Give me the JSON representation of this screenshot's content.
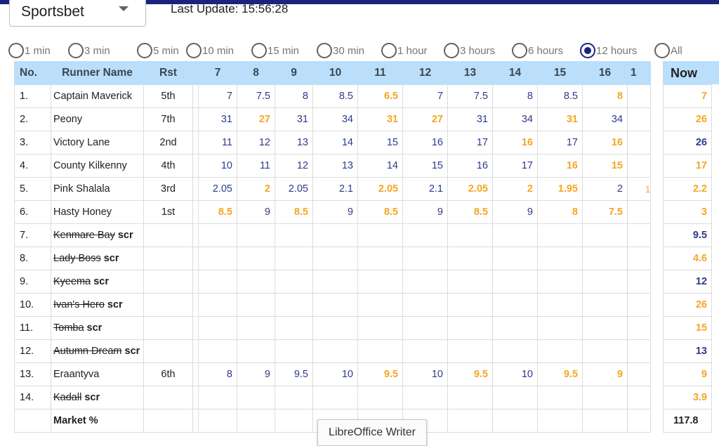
{
  "header": {
    "bookmaker": "Sportsbet",
    "last_update": "Last Update: 15:56:28",
    "accent_color": "#1a237e"
  },
  "time_filters": [
    {
      "label": "1 min",
      "selected": false
    },
    {
      "label": "3 min",
      "selected": false
    },
    {
      "label": "5 min",
      "selected": false
    },
    {
      "label": "10 min",
      "selected": false
    },
    {
      "label": "15 min",
      "selected": false
    },
    {
      "label": "30 min",
      "selected": false
    },
    {
      "label": "1 hour",
      "selected": false
    },
    {
      "label": "3 hours",
      "selected": false
    },
    {
      "label": "6 hours",
      "selected": false
    },
    {
      "label": "12 hours",
      "selected": true
    },
    {
      "label": "All",
      "selected": false
    }
  ],
  "table": {
    "headers": {
      "no": "No.",
      "name": "Runner Name",
      "rst": "Rst",
      "now": "Now"
    },
    "columns": [
      "7",
      "8",
      "9",
      "10",
      "11",
      "12",
      "13",
      "14",
      "15",
      "16",
      "1"
    ],
    "colors": {
      "increase": "#f5a623",
      "decrease": "#2d3a8c",
      "header_bg": "#bbdefb"
    },
    "runners": [
      {
        "no": "1.",
        "name": "Captain Maverick",
        "rst": "5th",
        "scratched": false,
        "odds": [
          "7",
          "7.5",
          "8",
          "8.5",
          "6.5",
          "7",
          "7.5",
          "8",
          "8.5",
          "8"
        ],
        "up": [
          false,
          false,
          false,
          false,
          true,
          false,
          false,
          false,
          false,
          true
        ],
        "now": "7",
        "now_up": true
      },
      {
        "no": "2.",
        "name": "Peony",
        "rst": "7th",
        "scratched": false,
        "odds": [
          "31",
          "27",
          "31",
          "34",
          "31",
          "27",
          "31",
          "34",
          "31",
          "34"
        ],
        "up": [
          false,
          true,
          false,
          false,
          true,
          true,
          false,
          false,
          true,
          false
        ],
        "now": "26",
        "now_up": true
      },
      {
        "no": "3.",
        "name": "Victory Lane",
        "rst": "2nd",
        "scratched": false,
        "odds": [
          "11",
          "12",
          "13",
          "14",
          "15",
          "16",
          "17",
          "16",
          "17",
          "16"
        ],
        "up": [
          false,
          false,
          false,
          false,
          false,
          false,
          false,
          true,
          false,
          true
        ],
        "now": "26",
        "now_up": false
      },
      {
        "no": "4.",
        "name": "County Kilkenny",
        "rst": "4th",
        "scratched": false,
        "odds": [
          "10",
          "11",
          "12",
          "13",
          "14",
          "15",
          "16",
          "17",
          "16",
          "15"
        ],
        "up": [
          false,
          false,
          false,
          false,
          false,
          false,
          false,
          false,
          true,
          true
        ],
        "now": "17",
        "now_up": true
      },
      {
        "no": "5.",
        "name": "Pink Shalala",
        "rst": "3rd",
        "scratched": false,
        "odds": [
          "2.05",
          "2",
          "2.05",
          "2.1",
          "2.05",
          "2.1",
          "2.05",
          "2",
          "1.95",
          "2"
        ],
        "up": [
          false,
          true,
          false,
          false,
          true,
          false,
          true,
          true,
          true,
          false
        ],
        "partial": "1",
        "now": "2.2",
        "now_up": true
      },
      {
        "no": "6.",
        "name": "Hasty Honey",
        "rst": "1st",
        "scratched": false,
        "odds": [
          "8.5",
          "9",
          "8.5",
          "9",
          "8.5",
          "9",
          "8.5",
          "9",
          "8",
          "7.5"
        ],
        "up": [
          true,
          false,
          true,
          false,
          true,
          false,
          true,
          false,
          true,
          true
        ],
        "now": "3",
        "now_up": true
      },
      {
        "no": "7.",
        "name": "Kenmare Bay",
        "scr": "scr",
        "rst": "",
        "scratched": true,
        "now": "9.5",
        "now_up": false
      },
      {
        "no": "8.",
        "name": "Lady Boss",
        "scr": "scr",
        "rst": "",
        "scratched": true,
        "now": "4.6",
        "now_up": true
      },
      {
        "no": "9.",
        "name": "Kyeema",
        "scr": "scr",
        "rst": "",
        "scratched": true,
        "now": "12",
        "now_up": false
      },
      {
        "no": "10.",
        "name": "Ivan's Hero",
        "scr": "scr",
        "rst": "",
        "scratched": true,
        "now": "26",
        "now_up": true
      },
      {
        "no": "11.",
        "name": "Tomba",
        "scr": "scr",
        "rst": "",
        "scratched": true,
        "now": "15",
        "now_up": true
      },
      {
        "no": "12.",
        "name": "Autumn Dream",
        "scr": "scr",
        "rst": "",
        "scratched": true,
        "now": "13",
        "now_up": false
      },
      {
        "no": "13.",
        "name": "Eraantyva",
        "rst": "6th",
        "scratched": false,
        "odds": [
          "8",
          "9",
          "9.5",
          "10",
          "9.5",
          "10",
          "9.5",
          "10",
          "9.5",
          "9"
        ],
        "up": [
          false,
          false,
          false,
          false,
          true,
          false,
          true,
          false,
          true,
          true
        ],
        "now": "9",
        "now_up": true
      },
      {
        "no": "14.",
        "name": "Kadall",
        "scr": "scr",
        "rst": "",
        "scratched": true,
        "now": "3.9",
        "now_up": true
      }
    ],
    "market_label": "Market %",
    "market_now": "117.8"
  },
  "tooltip": "LibreOffice Writer"
}
